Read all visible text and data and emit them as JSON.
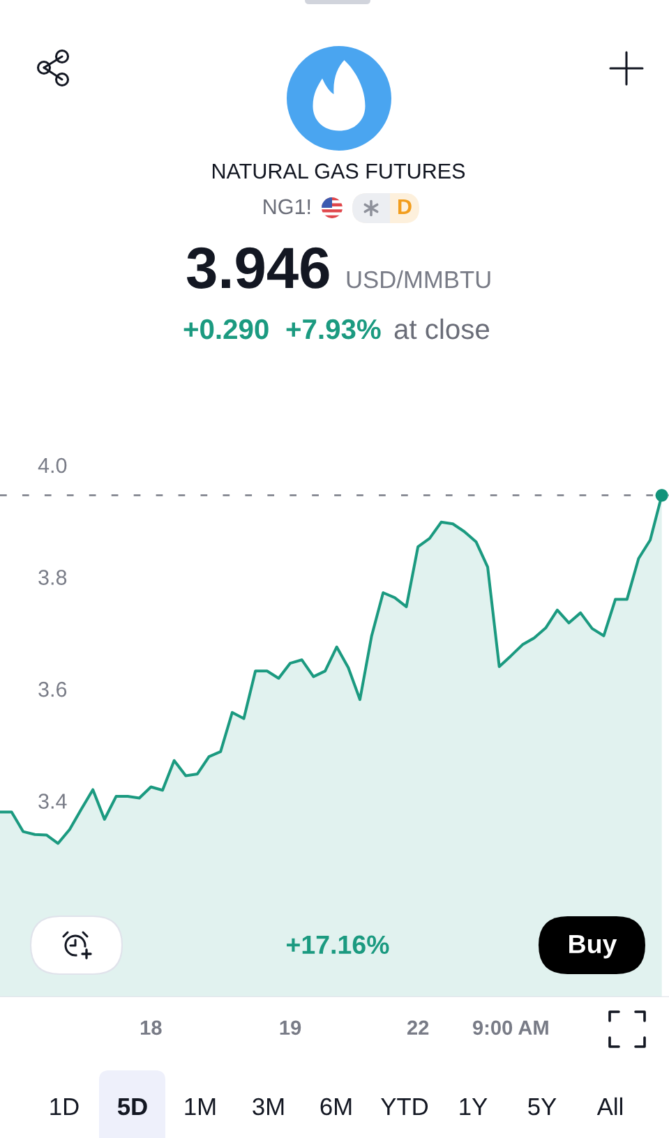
{
  "chart_data": {
    "type": "area",
    "title": "NATURAL GAS FUTURES",
    "subtitle": "NG1!",
    "categories": [
      null,
      null,
      null,
      null,
      null,
      null,
      null,
      null,
      null,
      null,
      null,
      null,
      null,
      "18",
      null,
      null,
      null,
      null,
      null,
      null,
      null,
      null,
      null,
      null,
      null,
      "19",
      null,
      null,
      null,
      null,
      null,
      null,
      null,
      null,
      null,
      null,
      "22",
      null,
      null,
      null,
      null,
      null,
      null,
      null,
      "9:00 AM",
      null,
      null,
      null,
      null,
      null,
      null,
      null,
      null,
      null,
      null,
      null,
      null,
      null
    ],
    "series": [
      {
        "color": "#1b9a80",
        "values": [
          3.38,
          3.38,
          3.345,
          3.34,
          3.339,
          3.324,
          3.349,
          3.385,
          3.42,
          3.367,
          3.408,
          3.408,
          3.405,
          3.425,
          3.419,
          3.472,
          3.445,
          3.448,
          3.479,
          3.488,
          3.558,
          3.547,
          3.632,
          3.632,
          3.619,
          3.646,
          3.652,
          3.622,
          3.632,
          3.675,
          3.638,
          3.581,
          3.694,
          3.772,
          3.763,
          3.747,
          3.854,
          3.869,
          3.898,
          3.895,
          3.881,
          3.863,
          3.818,
          3.64,
          3.659,
          3.679,
          3.691,
          3.709,
          3.741,
          3.718,
          3.736,
          3.708,
          3.695,
          3.76,
          3.76,
          3.833,
          3.866,
          3.946
        ]
      },
      {
        "type": "scatter",
        "color": "#12937a",
        "marker": "circle",
        "values": [
          null,
          null,
          null,
          null,
          null,
          null,
          null,
          null,
          null,
          null,
          null,
          null,
          null,
          null,
          null,
          null,
          null,
          null,
          null,
          null,
          null,
          null,
          null,
          null,
          null,
          null,
          null,
          null,
          null,
          null,
          null,
          null,
          null,
          null,
          null,
          null,
          null,
          null,
          null,
          null,
          null,
          null,
          null,
          null,
          null,
          null,
          null,
          null,
          null,
          null,
          null,
          null,
          null,
          null,
          null,
          null,
          null,
          3.946
        ]
      }
    ],
    "ylim": [
      3.05,
      4.0
    ],
    "yticks": [
      3.4,
      3.6,
      3.8,
      {
        "value": 4.0,
        "label": "4.0"
      }
    ],
    "grid": false,
    "ref_lines": [
      {
        "axis": "y",
        "value": 3.946,
        "color": "#787b86",
        "line_style": "dashed"
      }
    ],
    "annotations": [
      "3.946",
      "USD/MMBTU",
      "+0.290",
      "+7.93%",
      "at close",
      "D",
      "+17.16%",
      "Buy",
      "1D",
      "5D",
      "1M",
      "3M",
      "6M",
      "YTD",
      "1Y",
      "5Y",
      "All"
    ]
  }
}
